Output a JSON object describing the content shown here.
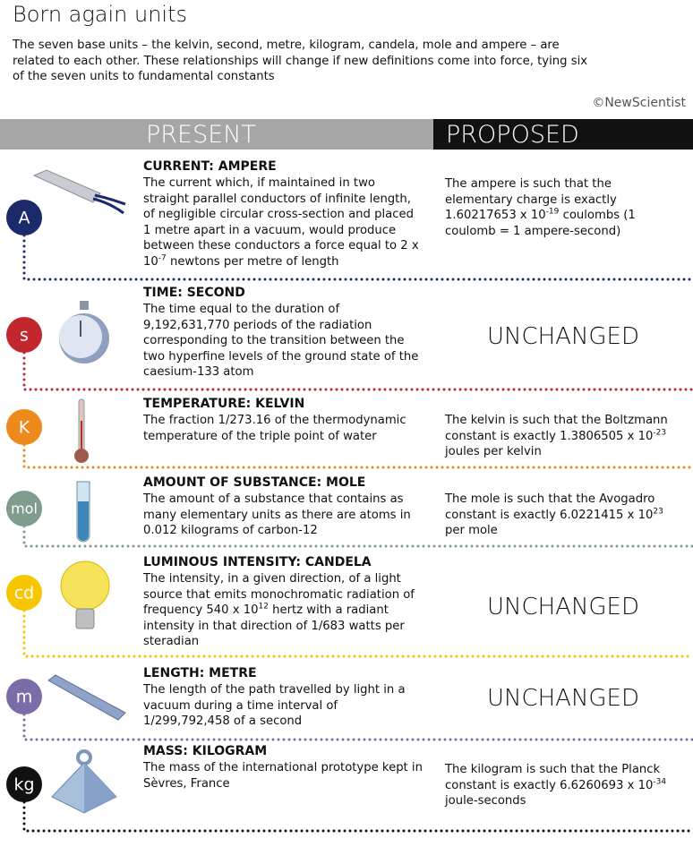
{
  "header": {
    "title": "Born again units",
    "subtitle": "The seven base units – the kelvin, second, metre, kilogram, candela, mole and ampere – are related to each other. These relationships will change if new definitions come into force, tying six of the seven units to fundamental constants",
    "credit": "©NewScientist"
  },
  "columns": {
    "present": "PRESENT",
    "proposed": "PROPOSED"
  },
  "rows": [
    {
      "symbol": "A",
      "color": "#1b2a6b",
      "heading": "CURRENT: AMPERE",
      "present": {
        "text": "The current which, if maintained in two straight parallel conductors of infinite length, of negligible circular cross-section and placed 1 metre apart in a vacuum, would produce between these conductors a force equal to 2 x 10",
        "sup": "-7",
        "after": " newtons per metre of length"
      },
      "proposed": {
        "text": "The ampere is such that the elementary charge is exactly 1.60217653 x 10",
        "sup": "-19",
        "after": " coulombs (1 coulomb = 1 ampere-second)"
      }
    },
    {
      "symbol": "s",
      "color": "#c1272d",
      "heading": "TIME: SECOND",
      "present": {
        "text": "The time equal to the duration of 9,192,631,770 periods of the radiation corresponding to the transition between the two hyperfine levels of the ground state of the caesium-133 atom"
      },
      "proposed": "UNCHANGED"
    },
    {
      "symbol": "K",
      "color": "#ee8a1c",
      "heading": "TEMPERATURE: KELVIN",
      "present": {
        "text": "The fraction 1/273.16 of the thermodynamic temperature of the triple point of water"
      },
      "proposed": {
        "text": "The kelvin is such that the Boltzmann constant is exactly 1.3806505 x 10",
        "sup": "-23",
        "after": " joules per kelvin"
      }
    },
    {
      "symbol": "mol",
      "color": "#7f9c8c",
      "heading": "AMOUNT OF SUBSTANCE: MOLE",
      "present": {
        "text": "The amount of a substance that contains as many elementary units as there are atoms in 0.012 kilograms of carbon-12"
      },
      "proposed": {
        "text": "The mole is such that the Avogadro constant is exactly 6.0221415 x 10",
        "sup": "23",
        "after": " per mole"
      }
    },
    {
      "symbol": "cd",
      "color": "#f6c700",
      "heading": "LUMINOUS INTENSITY: CANDELA",
      "present": {
        "text": "The intensity, in a given direction, of a light source that emits monochromatic radiation of frequency 540 x 10",
        "sup": "12",
        "after": " hertz with a radiant intensity in that direction of 1/683 watts per steradian"
      },
      "proposed": "UNCHANGED"
    },
    {
      "symbol": "m",
      "color": "#7b6ea8",
      "heading": "LENGTH: METRE",
      "present": {
        "text": "The length of the path travelled by light in a vacuum during a time interval of 1/299,792,458 of a second"
      },
      "proposed": "UNCHANGED"
    },
    {
      "symbol": "kg",
      "color": "#111111",
      "heading": "MASS: KILOGRAM",
      "present": {
        "text": "The mass of the international prototype kept in Sèvres, France"
      },
      "proposed": {
        "text": "The kilogram is such that the Planck constant is exactly 6.6260693 x 10",
        "sup": "-34",
        "after": " joule-seconds"
      }
    }
  ]
}
